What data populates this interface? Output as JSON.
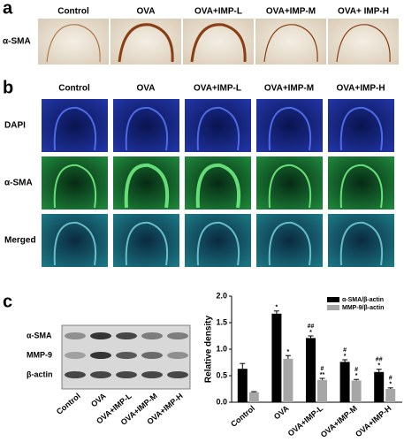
{
  "panel_a": {
    "label": "a",
    "columns": [
      "Control",
      "OVA",
      "OVA+IMP-L",
      "OVA+IMP-M",
      "OVA+ IMP-H"
    ],
    "row_label": "α-SMA"
  },
  "panel_b": {
    "label": "b",
    "columns": [
      "Control",
      "OVA",
      "OVA+IMP-L",
      "OVA+IMP-M",
      "OVA+IMP-H"
    ],
    "rows": [
      "DAPI",
      "α-SMA",
      "Merged"
    ]
  },
  "panel_c": {
    "label": "c",
    "blot_rows": [
      "α-SMA",
      "MMP-9",
      "β-actin"
    ],
    "lanes": [
      "Control",
      "OVA",
      "OVA+IMP-L",
      "OVA+IMP-M",
      "OVA+IMP-H"
    ]
  },
  "chart_data": {
    "type": "bar",
    "y_label": "Relative density",
    "categories": [
      "Control",
      "OVA",
      "OVA+IMP-L",
      "OVA+IMP-M",
      "OVA+IMP-H"
    ],
    "series": [
      {
        "name": "α-SMA/β-actin",
        "color": "#000000",
        "values": [
          0.63,
          1.67,
          1.21,
          0.76,
          0.57
        ],
        "errors": [
          0.1,
          0.05,
          0.04,
          0.04,
          0.05
        ],
        "markers": [
          null,
          [
            "*"
          ],
          [
            "##",
            "*"
          ],
          [
            "#",
            "*"
          ],
          [
            "##",
            "*"
          ]
        ]
      },
      {
        "name": "MMP-9/β-actin",
        "color": "#a6a6a6",
        "values": [
          0.19,
          0.82,
          0.42,
          0.41,
          0.25
        ],
        "errors": [
          0.01,
          0.06,
          0.03,
          0.02,
          0.02
        ],
        "markers": [
          null,
          [
            "*"
          ],
          [
            "#",
            "**"
          ],
          [
            "#",
            "*"
          ],
          [
            "#",
            "*"
          ]
        ]
      }
    ],
    "ylim": [
      0,
      2
    ],
    "yticks": [
      {
        "value": 0,
        "label": "0.0"
      },
      {
        "value": 0.5,
        "label": "0.5"
      },
      {
        "value": 1,
        "label": "1.0"
      },
      {
        "value": 1.5,
        "label": "1.5"
      },
      {
        "value": 2,
        "label": "2.0"
      }
    ],
    "legend": "top-right"
  }
}
